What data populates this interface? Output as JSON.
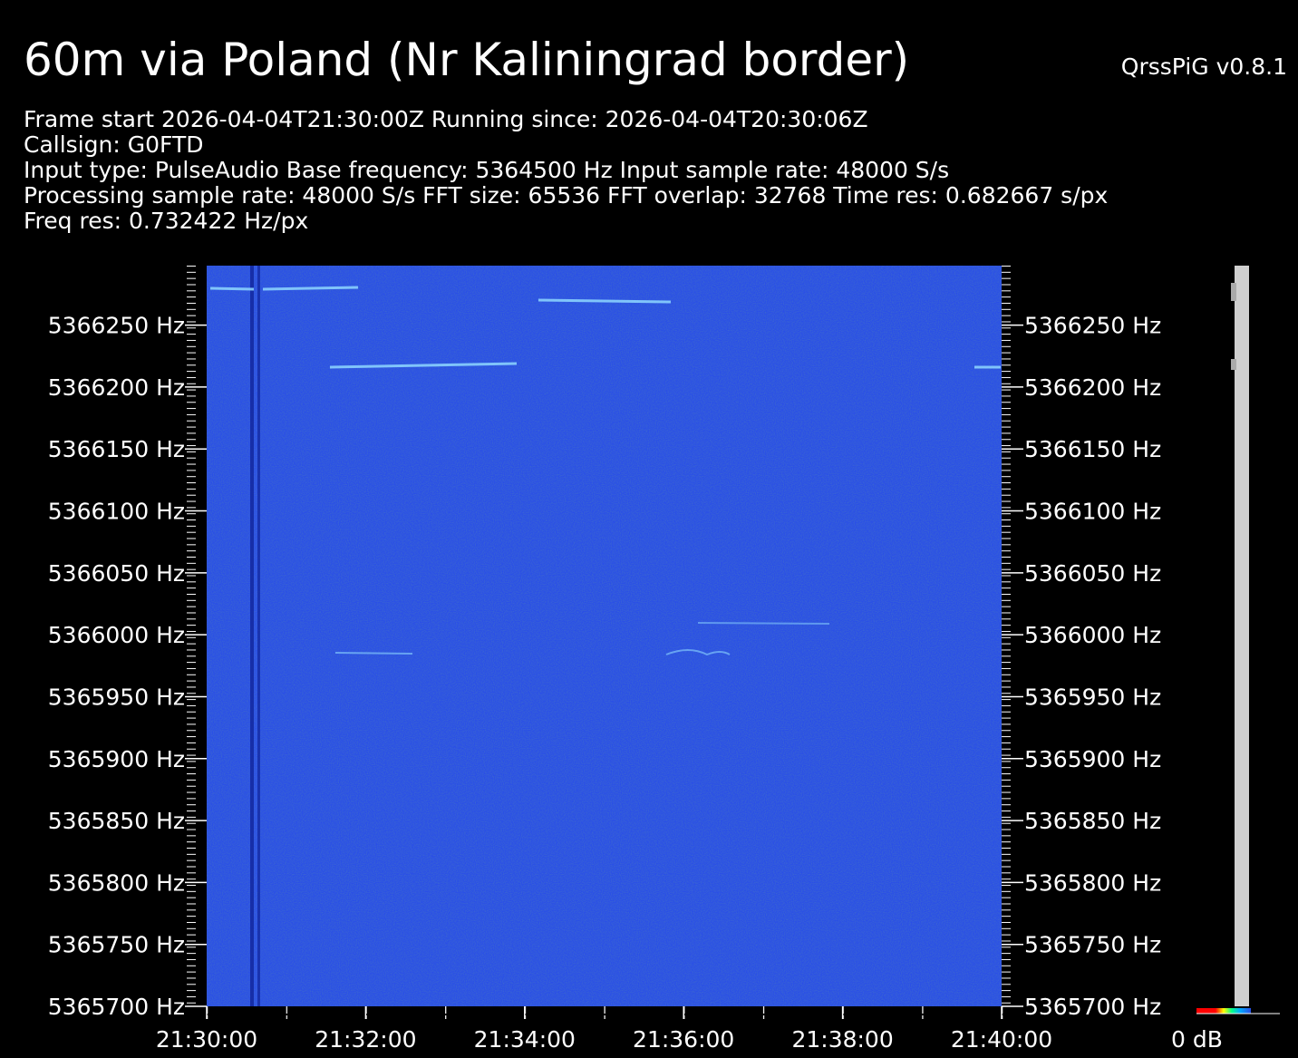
{
  "chart_data": {
    "type": "spectrogram",
    "title": "60m via Poland (Nr Kaliningrad border)",
    "subtitle": "QrssPiG v0.8.1",
    "info": [
      "Frame start 2026-04-04T21:30:00Z Running since: 2026-04-04T20:30:06Z",
      "Callsign: G0FTD",
      "Input type: PulseAudio Base frequency: 5364500 Hz Input sample rate: 48000 S/s",
      "Processing sample rate: 48000 S/s FFT size: 65536 FFT overlap: 32768 Time res: 0.682667 s/px",
      "Freq res: 0.732422 Hz/px"
    ],
    "xlim": [
      "21:30:00",
      "21:40:00"
    ],
    "xticks": [
      "21:30:00",
      "21:32:00",
      "21:34:00",
      "21:36:00",
      "21:38:00",
      "21:40:00"
    ],
    "ylim": [
      5365700,
      5366298
    ],
    "yticks": [
      {
        "value": 5366250,
        "label": "5366250 Hz"
      },
      {
        "value": 5366200,
        "label": "5366200 Hz"
      },
      {
        "value": 5366150,
        "label": "5366150 Hz"
      },
      {
        "value": 5366100,
        "label": "5366100 Hz"
      },
      {
        "value": 5366050,
        "label": "5366050 Hz"
      },
      {
        "value": 5366000,
        "label": "5366000 Hz"
      },
      {
        "value": 5365950,
        "label": "5365950 Hz"
      },
      {
        "value": 5365900,
        "label": "5365900 Hz"
      },
      {
        "value": 5365850,
        "label": "5365850 Hz"
      },
      {
        "value": 5365800,
        "label": "5365800 Hz"
      },
      {
        "value": 5365750,
        "label": "5365750 Hz"
      },
      {
        "value": 5365700,
        "label": "5365700 Hz"
      }
    ],
    "colorbar_label": "0 dB",
    "color": "#2a4fe6"
  }
}
